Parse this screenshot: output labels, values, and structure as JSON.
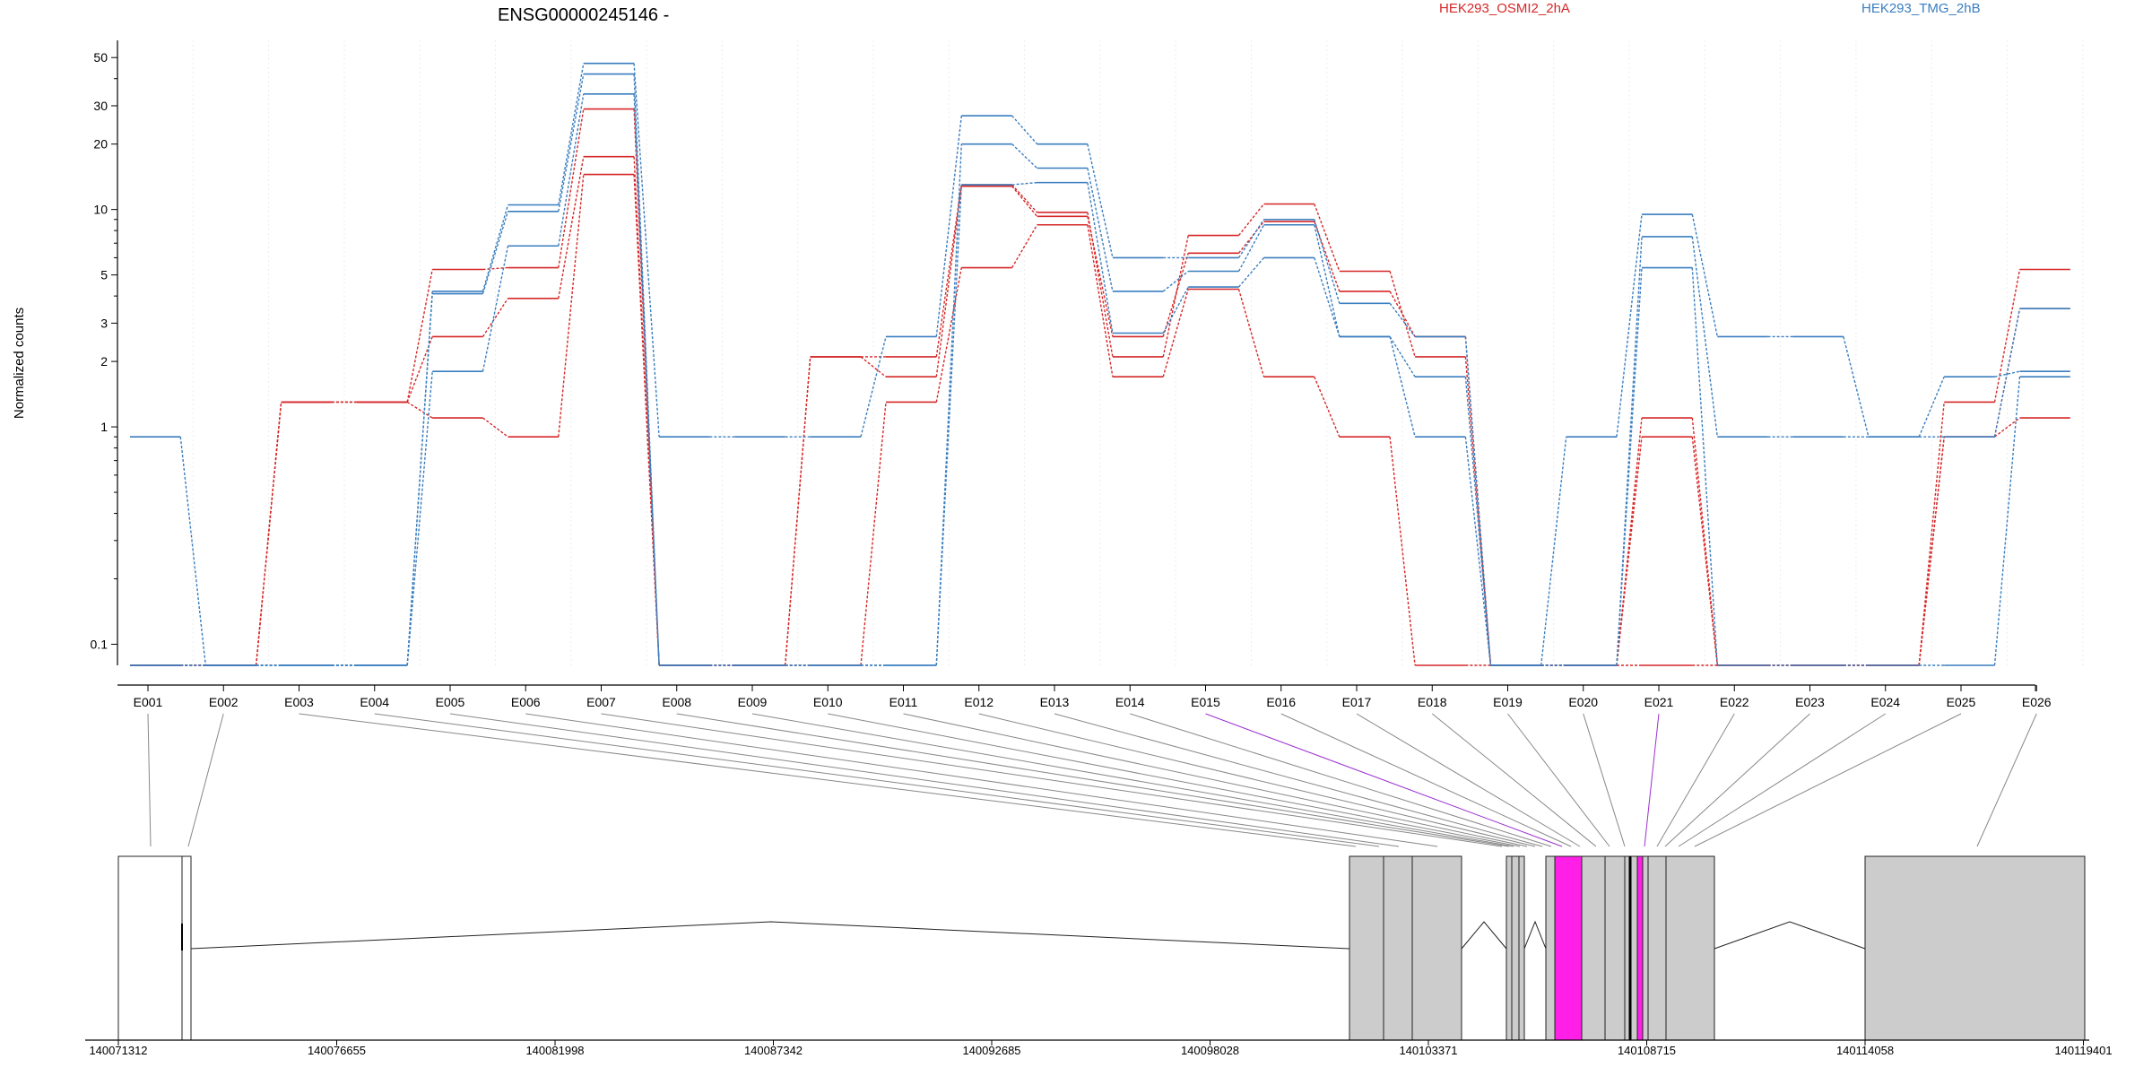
{
  "chart_data": {
    "type": "line",
    "title": "ENSG00000245146 -",
    "ylabel": "Normalized counts",
    "yscale": "log",
    "ylim": [
      0.08,
      60
    ],
    "yticks": [
      {
        "value": 0.1,
        "label": "0.1"
      },
      {
        "value": 1,
        "label": "1"
      },
      {
        "value": 2,
        "label": "2"
      },
      {
        "value": 3,
        "label": "3"
      },
      {
        "value": 5,
        "label": "5"
      },
      {
        "value": 10,
        "label": "10"
      },
      {
        "value": 20,
        "label": "20"
      },
      {
        "value": 30,
        "label": "30"
      },
      {
        "value": 50,
        "label": "50"
      }
    ],
    "grid": "vertical",
    "legend_position": "top",
    "legend": [
      {
        "label": "HEK293_OSMI2_2hA",
        "color": "#d62728"
      },
      {
        "label": "HEK293_TMG_2hB",
        "color": "#3a7ebf"
      }
    ],
    "categories": [
      "E001",
      "E002",
      "E003",
      "E004",
      "E005",
      "E006",
      "E007",
      "E008",
      "E009",
      "E010",
      "E011",
      "E012",
      "E013",
      "E014",
      "E015",
      "E016",
      "E017",
      "E018",
      "E019",
      "E020",
      "E021",
      "E022",
      "E023",
      "E024",
      "E025",
      "E026"
    ],
    "series": [
      {
        "group": "HEK293_OSMI2_2hA",
        "color": "#d62728",
        "values": [
          0.08,
          0.08,
          1.3,
          1.3,
          5.3,
          5.4,
          29,
          0.08,
          0.08,
          2.1,
          2.1,
          13,
          9.7,
          2.1,
          7.6,
          10.6,
          5.2,
          2.1,
          0.08,
          0.08,
          1.1,
          0.08,
          0.08,
          0.08,
          1.3,
          5.3
        ]
      },
      {
        "group": "HEK293_OSMI2_2hA",
        "color": "#d62728",
        "values": [
          0.08,
          0.08,
          1.3,
          1.3,
          2.6,
          3.9,
          17.5,
          0.08,
          0.08,
          2.1,
          1.7,
          12.8,
          9.3,
          2.6,
          6.3,
          8.8,
          4.2,
          2.6,
          0.08,
          0.08,
          0.9,
          0.08,
          0.08,
          0.08,
          0.9,
          3.5
        ]
      },
      {
        "group": "HEK293_OSMI2_2hA",
        "color": "#d62728",
        "values": [
          0.08,
          0.08,
          1.3,
          1.3,
          1.1,
          0.9,
          14.5,
          0.08,
          0.08,
          0.08,
          1.3,
          5.4,
          8.5,
          1.7,
          4.3,
          1.7,
          0.9,
          0.08,
          0.08,
          0.08,
          0.08,
          0.08,
          0.08,
          0.08,
          0.9,
          1.1
        ]
      },
      {
        "group": "HEK293_TMG_2hB",
        "color": "#3a7ebf",
        "values": [
          0.9,
          0.08,
          0.08,
          0.08,
          4.2,
          10.5,
          47,
          0.9,
          0.9,
          0.9,
          2.6,
          27,
          20,
          6,
          6,
          9,
          3.7,
          2.6,
          0.08,
          0.9,
          9.5,
          2.6,
          2.6,
          0.9,
          1.7,
          1.8
        ]
      },
      {
        "group": "HEK293_TMG_2hB",
        "color": "#3a7ebf",
        "values": [
          0.08,
          0.08,
          0.08,
          0.08,
          4.1,
          9.8,
          42,
          0.08,
          0.08,
          0.08,
          0.08,
          20,
          15.5,
          4.2,
          5.2,
          8.5,
          2.6,
          1.7,
          0.08,
          0.08,
          7.5,
          0.9,
          0.9,
          0.9,
          0.9,
          3.5
        ]
      },
      {
        "group": "HEK293_TMG_2hB",
        "color": "#3a7ebf",
        "values": [
          0.08,
          0.08,
          0.08,
          0.08,
          1.8,
          6.8,
          34,
          0.08,
          0.08,
          0.08,
          0.08,
          13,
          13.3,
          2.7,
          4.4,
          6,
          2.6,
          0.9,
          0.08,
          0.08,
          5.4,
          0.08,
          0.08,
          0.08,
          0.08,
          1.7
        ]
      }
    ],
    "gene_model": {
      "coordinate_ticks": [
        "140071312",
        "140076655",
        "140081998",
        "140087342",
        "140092685",
        "140098028",
        "140103371",
        "140108715",
        "140114058",
        "140119401"
      ],
      "highlighted_exons": [
        "E015",
        "E021"
      ],
      "highlight_color": "#ff1fe6",
      "exon_fill": "#cccccc"
    }
  }
}
